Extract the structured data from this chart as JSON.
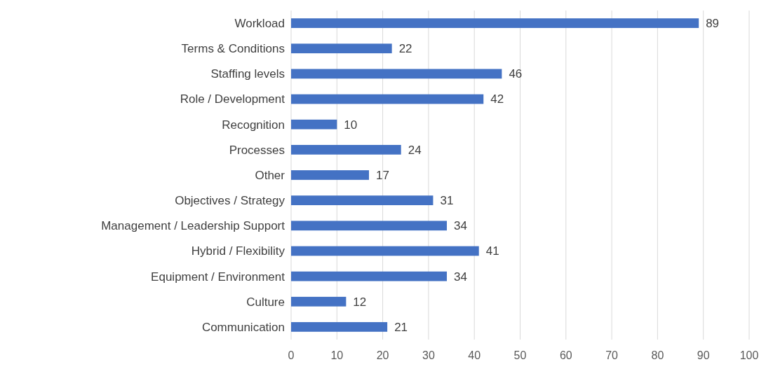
{
  "chart_data": {
    "type": "bar",
    "orientation": "horizontal",
    "categories": [
      "Workload",
      "Terms & Conditions",
      "Staffing levels",
      "Role / Development",
      "Recognition",
      "Processes",
      "Other",
      "Objectives / Strategy",
      "Management / Leadership Support",
      "Hybrid / Flexibility",
      "Equipment / Environment",
      "Culture",
      "Communication"
    ],
    "values": [
      89,
      22,
      46,
      42,
      10,
      24,
      17,
      31,
      34,
      41,
      34,
      12,
      21
    ],
    "color": "#4472c4",
    "xlim": [
      0,
      100
    ],
    "xticks": [
      0,
      10,
      20,
      30,
      40,
      50,
      60,
      70,
      80,
      90,
      100
    ],
    "grid": "x",
    "data_labels": true
  }
}
